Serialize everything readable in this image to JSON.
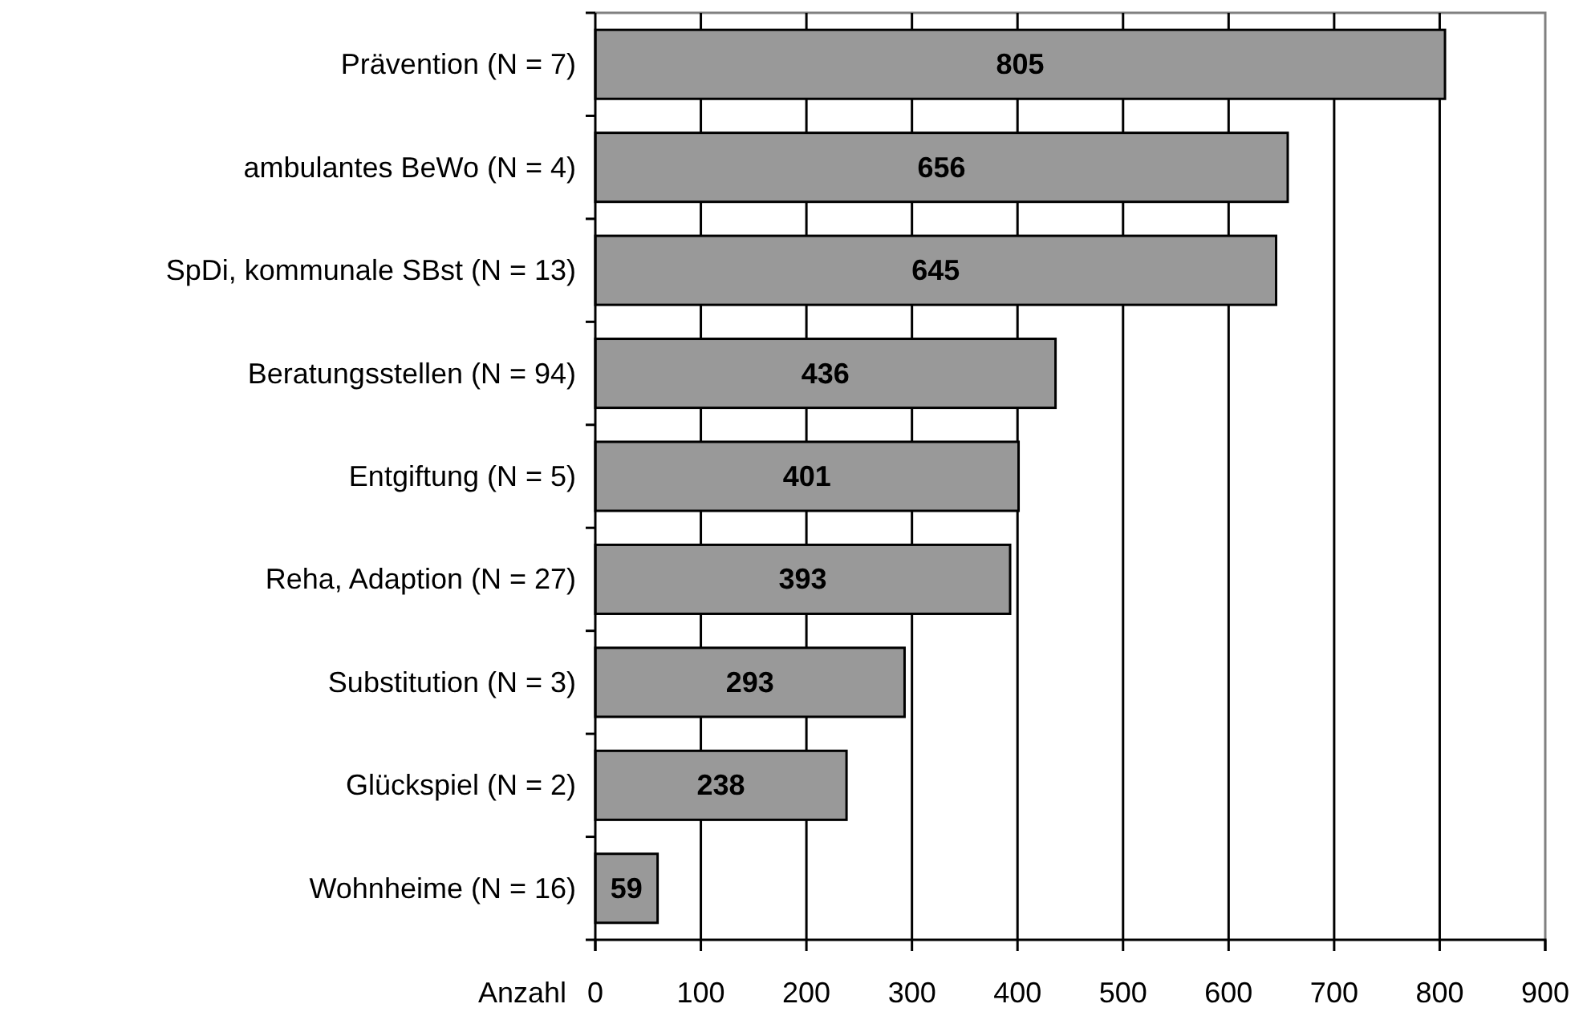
{
  "chart_data": {
    "type": "bar",
    "orientation": "horizontal",
    "xlabel": "Anzahl",
    "categories": [
      "Prävention (N = 7)",
      "ambulantes BeWo (N = 4)",
      "SpDi, kommunale SBst (N = 13)",
      "Beratungsstellen (N = 94)",
      "Entgiftung (N = 5)",
      "Reha, Adaption (N = 27)",
      "Substitution (N = 3)",
      "Glückspiel (N = 2)",
      "Wohnheime (N = 16)"
    ],
    "values": [
      805,
      656,
      645,
      436,
      401,
      393,
      293,
      238,
      59
    ],
    "color": "#999999",
    "xlim": [
      0,
      900
    ],
    "xticks": [
      0,
      100,
      200,
      300,
      400,
      500,
      600,
      700,
      800,
      900
    ],
    "grid": "x",
    "data_labels": true
  }
}
